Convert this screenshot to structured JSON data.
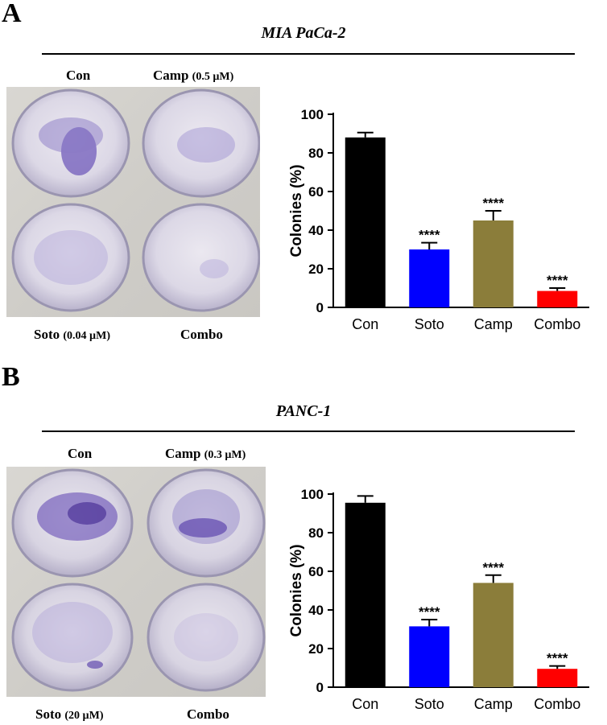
{
  "panels": [
    {
      "letter": "A",
      "cell_line": "MIA PaCa-2",
      "plate_labels": {
        "top_left": {
          "name": "Con",
          "conc": ""
        },
        "top_right": {
          "name": "Camp",
          "conc": "(0.5 µM)"
        },
        "bottom_left": {
          "name": "Soto",
          "conc": "(0.04 µM)"
        },
        "bottom_right": {
          "name": "Combo",
          "conc": ""
        }
      }
    },
    {
      "letter": "B",
      "cell_line": "PANC-1",
      "plate_labels": {
        "top_left": {
          "name": "Con",
          "conc": ""
        },
        "top_right": {
          "name": "Camp",
          "conc": "(0.3 µM)"
        },
        "bottom_left": {
          "name": "Soto",
          "conc": "(20 µM)"
        },
        "bottom_right": {
          "name": "Combo",
          "conc": ""
        }
      }
    }
  ],
  "chart_data": [
    {
      "type": "bar",
      "categories": [
        "Con",
        "Soto",
        "Camp",
        "Combo"
      ],
      "values": [
        88,
        30,
        45,
        8.5
      ],
      "errors": [
        2.5,
        3.5,
        5,
        1.5
      ],
      "significance": [
        "",
        "****",
        "****",
        "****"
      ],
      "colors": [
        "#000000",
        "#0000ff",
        "#8b7d3a",
        "#ff0000"
      ],
      "ylabel": "Colonies (%)",
      "ylim": [
        0,
        100
      ],
      "yticks": [
        0,
        20,
        40,
        60,
        80,
        100
      ]
    },
    {
      "type": "bar",
      "categories": [
        "Con",
        "Soto",
        "Camp",
        "Combo"
      ],
      "values": [
        95.5,
        31.5,
        54,
        9.5
      ],
      "errors": [
        3.5,
        3.5,
        4,
        1.5
      ],
      "significance": [
        "",
        "****",
        "****",
        "****"
      ],
      "colors": [
        "#000000",
        "#0000ff",
        "#8b7d3a",
        "#ff0000"
      ],
      "ylabel": "Colonies (%)",
      "ylim": [
        0,
        100
      ],
      "yticks": [
        0,
        20,
        40,
        60,
        80,
        100
      ]
    }
  ]
}
